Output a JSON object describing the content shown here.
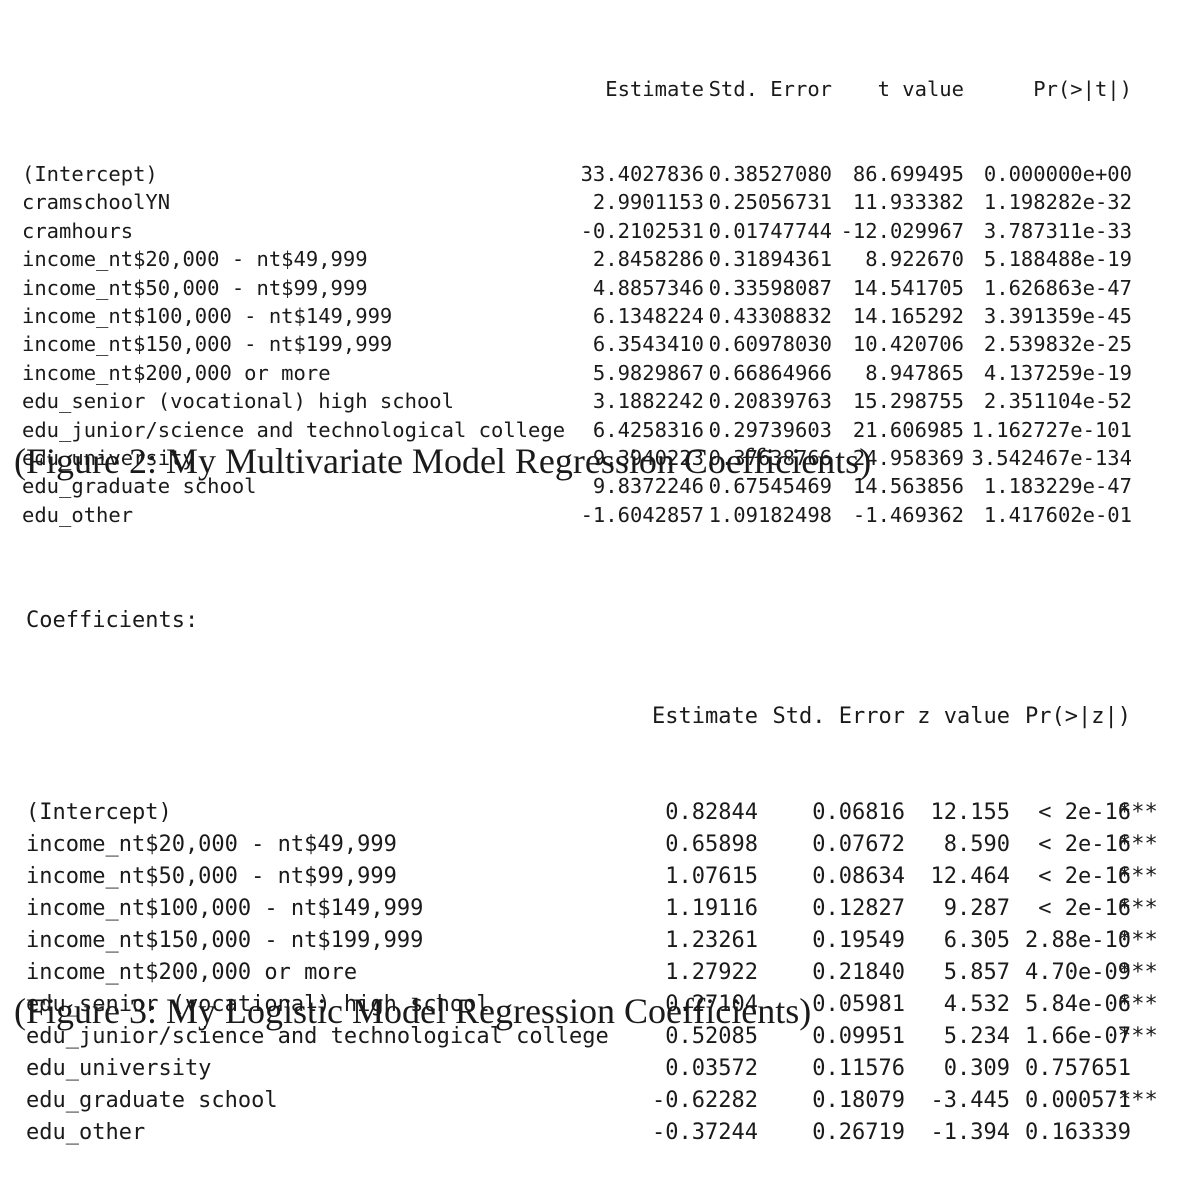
{
  "figure2": {
    "headers": [
      "Estimate",
      "Std. Error",
      "t value",
      "Pr(>|t|)"
    ],
    "rows": [
      {
        "label": "(Intercept)",
        "estimate": "33.4027836",
        "std_error": "0.38527080",
        "t_value": "86.699495",
        "p_value": "0.000000e+00"
      },
      {
        "label": "cramschoolYN",
        "estimate": "2.9901153",
        "std_error": "0.25056731",
        "t_value": "11.933382",
        "p_value": "1.198282e-32"
      },
      {
        "label": "cramhours",
        "estimate": "-0.2102531",
        "std_error": "0.01747744",
        "t_value": "-12.029967",
        "p_value": "3.787311e-33"
      },
      {
        "label": "income_nt$20,000 - nt$49,999",
        "estimate": "2.8458286",
        "std_error": "0.31894361",
        "t_value": "8.922670",
        "p_value": "5.188488e-19"
      },
      {
        "label": "income_nt$50,000 - nt$99,999",
        "estimate": "4.8857346",
        "std_error": "0.33598087",
        "t_value": "14.541705",
        "p_value": "1.626863e-47"
      },
      {
        "label": "income_nt$100,000 - nt$149,999",
        "estimate": "6.1348224",
        "std_error": "0.43308832",
        "t_value": "14.165292",
        "p_value": "3.391359e-45"
      },
      {
        "label": "income_nt$150,000 - nt$199,999",
        "estimate": "6.3543410",
        "std_error": "0.60978030",
        "t_value": "10.420706",
        "p_value": "2.539832e-25"
      },
      {
        "label": "income_nt$200,000 or more",
        "estimate": "5.9829867",
        "std_error": "0.66864966",
        "t_value": "8.947865",
        "p_value": "4.137259e-19"
      },
      {
        "label": "edu_senior (vocational) high school",
        "estimate": "3.1882242",
        "std_error": "0.20839763",
        "t_value": "15.298755",
        "p_value": "2.351104e-52"
      },
      {
        "label": "edu_junior/science and technological college",
        "estimate": "6.4258316",
        "std_error": "0.29739603",
        "t_value": "21.606985",
        "p_value": "1.162727e-101"
      },
      {
        "label": "edu_university",
        "estimate": "9.3940223",
        "std_error": "0.37638766",
        "t_value": "24.958369",
        "p_value": "3.542467e-134"
      },
      {
        "label": "edu_graduate school",
        "estimate": "9.8372246",
        "std_error": "0.67545469",
        "t_value": "14.563856",
        "p_value": "1.183229e-47"
      },
      {
        "label": "edu_other",
        "estimate": "-1.6042857",
        "std_error": "1.09182498",
        "t_value": "-1.469362",
        "p_value": "1.417602e-01"
      }
    ],
    "caption": "(Figure 2: My Multivariate Model Regression Coefficients)"
  },
  "figure3": {
    "title": "Coefficients:",
    "headers": [
      "Estimate",
      "Std. Error",
      "z value",
      "Pr(>|z|)"
    ],
    "rows": [
      {
        "label": "(Intercept)",
        "estimate": "0.82844",
        "std_error": "0.06816",
        "z_value": "12.155",
        "p_value": "< 2e-16",
        "stars": "***"
      },
      {
        "label": "income_nt$20,000 - nt$49,999",
        "estimate": "0.65898",
        "std_error": "0.07672",
        "z_value": "8.590",
        "p_value": "< 2e-16",
        "stars": "***"
      },
      {
        "label": "income_nt$50,000 - nt$99,999",
        "estimate": "1.07615",
        "std_error": "0.08634",
        "z_value": "12.464",
        "p_value": "< 2e-16",
        "stars": "***"
      },
      {
        "label": "income_nt$100,000 - nt$149,999",
        "estimate": "1.19116",
        "std_error": "0.12827",
        "z_value": "9.287",
        "p_value": "< 2e-16",
        "stars": "***"
      },
      {
        "label": "income_nt$150,000 - nt$199,999",
        "estimate": "1.23261",
        "std_error": "0.19549",
        "z_value": "6.305",
        "p_value": "2.88e-10",
        "stars": "***"
      },
      {
        "label": "income_nt$200,000 or more",
        "estimate": "1.27922",
        "std_error": "0.21840",
        "z_value": "5.857",
        "p_value": "4.70e-09",
        "stars": "***"
      },
      {
        "label": "edu_senior (vocational) high school",
        "estimate": "0.27104",
        "std_error": "0.05981",
        "z_value": "4.532",
        "p_value": "5.84e-06",
        "stars": "***"
      },
      {
        "label": "edu_junior/science and technological college",
        "estimate": "0.52085",
        "std_error": "0.09951",
        "z_value": "5.234",
        "p_value": "1.66e-07",
        "stars": "***"
      },
      {
        "label": "edu_university",
        "estimate": "0.03572",
        "std_error": "0.11576",
        "z_value": "0.309",
        "p_value": "0.757651",
        "stars": ""
      },
      {
        "label": "edu_graduate school",
        "estimate": "-0.62282",
        "std_error": "0.18079",
        "z_value": "-3.445",
        "p_value": "0.000571",
        "stars": "***"
      },
      {
        "label": "edu_other",
        "estimate": "-0.37244",
        "std_error": "0.26719",
        "z_value": "-1.394",
        "p_value": "0.163339",
        "stars": ""
      }
    ],
    "caption": "(Figure 3: My Logistic Model Regression Coefficients)"
  }
}
